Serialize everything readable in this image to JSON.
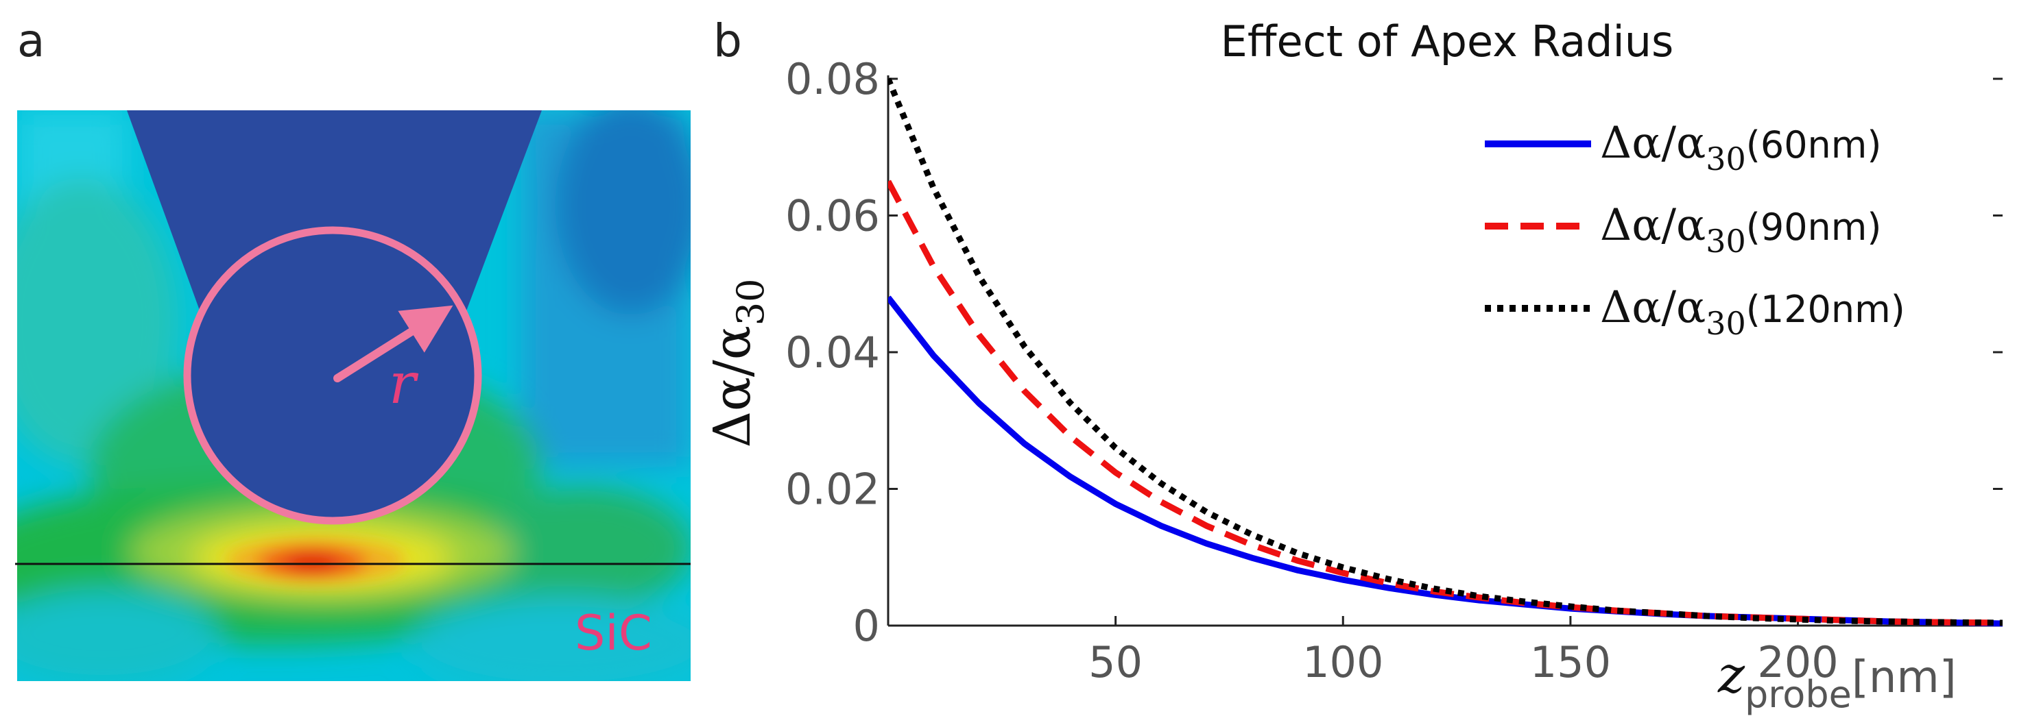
{
  "panel_a": {
    "label": "a",
    "radius_symbol": "r",
    "material_label": "SiC",
    "heatmap_colors": [
      "#00c8e0",
      "#1a9fd0",
      "#2e4aa0",
      "#20b050",
      "#e8e020",
      "#e83010"
    ],
    "tip_color": "#2a4a9f",
    "circle_color": "#f07aa0",
    "label_color": "#e8407a"
  },
  "panel_b": {
    "label": "b"
  },
  "chart_data": {
    "type": "line",
    "title": "Effect of Apex Radius",
    "xlabel": {
      "symbol": "z",
      "subscript": "probe",
      "unit": "[nm]"
    },
    "ylabel": {
      "text": "Δα/α",
      "subscript": "30"
    },
    "xlim": [
      0,
      245
    ],
    "ylim": [
      0,
      0.08
    ],
    "xticks": [
      50,
      100,
      150,
      200
    ],
    "yticks": [
      0,
      0.02,
      0.04,
      0.06,
      0.08
    ],
    "ytick_labels": [
      "0",
      "0.02",
      "0.04",
      "0.06",
      "0.08"
    ],
    "legend_position": "top-right",
    "series": [
      {
        "name": "Δα/α30(60nm)",
        "legend_main": "Δα/α",
        "legend_sub": "30",
        "legend_suffix": "(60nm)",
        "color": "#0000ee",
        "style": "solid",
        "x": [
          0,
          10,
          20,
          30,
          40,
          50,
          60,
          70,
          80,
          90,
          100,
          110,
          120,
          130,
          140,
          150,
          160,
          170,
          180,
          190,
          200,
          210,
          220,
          230,
          245
        ],
        "y": [
          0.048,
          0.0395,
          0.0325,
          0.0266,
          0.0218,
          0.0178,
          0.0146,
          0.012,
          0.0099,
          0.0081,
          0.0067,
          0.0055,
          0.0045,
          0.0037,
          0.0031,
          0.0025,
          0.0021,
          0.0017,
          0.0014,
          0.0012,
          0.001,
          0.0008,
          0.0006,
          0.0005,
          0.0003
        ]
      },
      {
        "name": "Δα/α30(90nm)",
        "legend_main": "Δα/α",
        "legend_sub": "30",
        "legend_suffix": "(90nm)",
        "color": "#ee1111",
        "style": "dashed",
        "x": [
          0,
          10,
          20,
          30,
          40,
          50,
          60,
          70,
          80,
          90,
          100,
          110,
          120,
          130,
          140,
          150,
          160,
          170,
          180,
          190,
          200,
          210,
          220,
          230,
          245
        ],
        "y": [
          0.065,
          0.0525,
          0.0425,
          0.0343,
          0.0277,
          0.0224,
          0.0181,
          0.0146,
          0.0118,
          0.0095,
          0.0077,
          0.0062,
          0.005,
          0.0041,
          0.0033,
          0.0027,
          0.0022,
          0.0018,
          0.0014,
          0.0012,
          0.001,
          0.0008,
          0.0006,
          0.0005,
          0.0004
        ]
      },
      {
        "name": "Δα/α30(120nm)",
        "legend_main": "Δα/α",
        "legend_sub": "30",
        "legend_suffix": "(120nm)",
        "color": "#000000",
        "style": "dotted",
        "x": [
          0,
          10,
          20,
          30,
          40,
          50,
          60,
          70,
          80,
          90,
          100,
          110,
          120,
          130,
          140,
          150,
          160,
          170,
          180,
          190,
          200,
          210,
          220,
          230,
          245
        ],
        "y": [
          0.08,
          0.064,
          0.0511,
          0.0408,
          0.0326,
          0.026,
          0.0208,
          0.0166,
          0.0133,
          0.0106,
          0.0085,
          0.0068,
          0.0054,
          0.0043,
          0.0035,
          0.0028,
          0.0022,
          0.0018,
          0.0014,
          0.0011,
          0.0009,
          0.0007,
          0.0006,
          0.0005,
          0.0004
        ]
      }
    ]
  }
}
